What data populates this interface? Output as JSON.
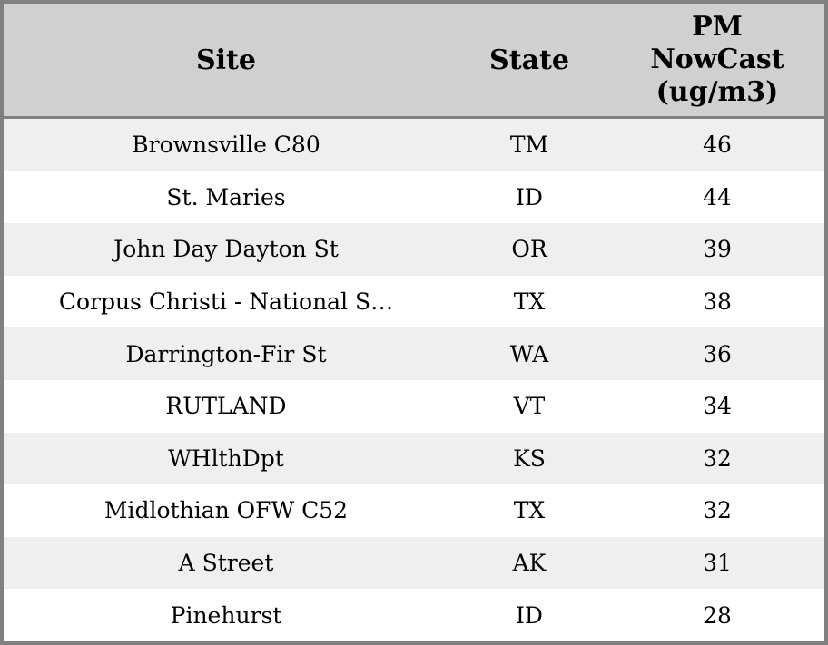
{
  "chart_data": {
    "type": "table",
    "columns": [
      {
        "key": "site",
        "label": "Site"
      },
      {
        "key": "state",
        "label": "State"
      },
      {
        "key": "pm_nowcast",
        "label": "PM\nNowCast\n(ug/m3)"
      }
    ],
    "rows": [
      {
        "site": "Brownsville C80",
        "state": "TM",
        "pm_nowcast": 46
      },
      {
        "site": "St. Maries",
        "state": "ID",
        "pm_nowcast": 44
      },
      {
        "site": "John Day Dayton St",
        "state": "OR",
        "pm_nowcast": 39
      },
      {
        "site": "Corpus Christi - National S…",
        "state": "TX",
        "pm_nowcast": 38
      },
      {
        "site": "Darrington-Fir St",
        "state": "WA",
        "pm_nowcast": 36
      },
      {
        "site": "RUTLAND",
        "state": "VT",
        "pm_nowcast": 34
      },
      {
        "site": "WHlthDpt",
        "state": "KS",
        "pm_nowcast": 32
      },
      {
        "site": "Midlothian OFW C52",
        "state": "TX",
        "pm_nowcast": 32
      },
      {
        "site": "A Street",
        "state": "AK",
        "pm_nowcast": 31
      },
      {
        "site": "Pinehurst",
        "state": "ID",
        "pm_nowcast": 28
      }
    ]
  },
  "colors": {
    "header_bg": "#d0d0d0",
    "row_stripe_bg": "#efefef",
    "row_bg": "#ffffff",
    "border": "#808080",
    "text": "#000000"
  }
}
